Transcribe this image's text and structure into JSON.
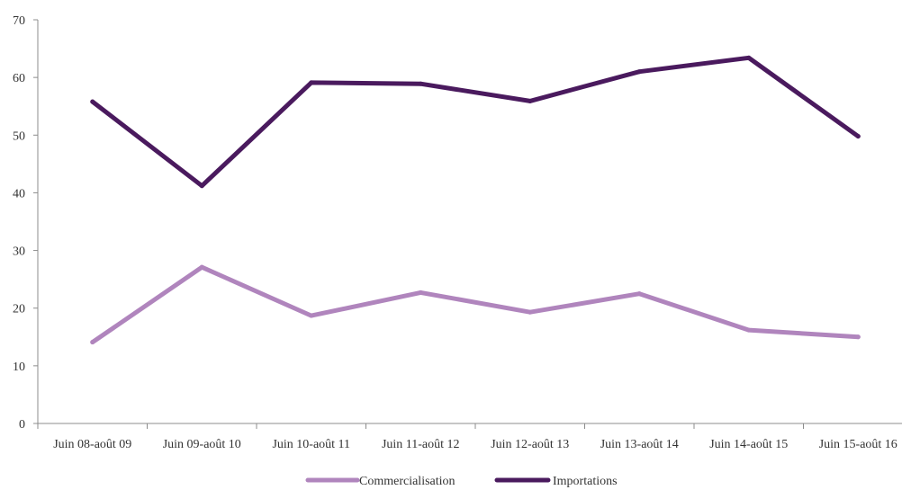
{
  "chart_data": {
    "type": "line",
    "title": "",
    "xlabel": "",
    "ylabel": "",
    "categories": [
      "Juin 08-août 09",
      "Juin 09-août 10",
      "Juin 10-août 11",
      "Juin 11-août 12",
      "Juin 12-août 13",
      "Juin 13-août 14",
      "Juin 14-août 15",
      "Juin 15-août 16"
    ],
    "ylim": [
      0,
      70
    ],
    "yticks": [
      0,
      10,
      20,
      30,
      40,
      50,
      60,
      70
    ],
    "grid": false,
    "legend_position": "bottom",
    "series": [
      {
        "name": "Commercialisation",
        "color": "#b085bd",
        "values": [
          14.1,
          27.1,
          18.7,
          22.7,
          19.3,
          22.5,
          16.2,
          15.0
        ]
      },
      {
        "name": "Importations",
        "color": "#4a1a5e",
        "values": [
          55.8,
          41.2,
          59.1,
          58.9,
          55.9,
          61.0,
          63.4,
          49.8
        ]
      }
    ]
  }
}
